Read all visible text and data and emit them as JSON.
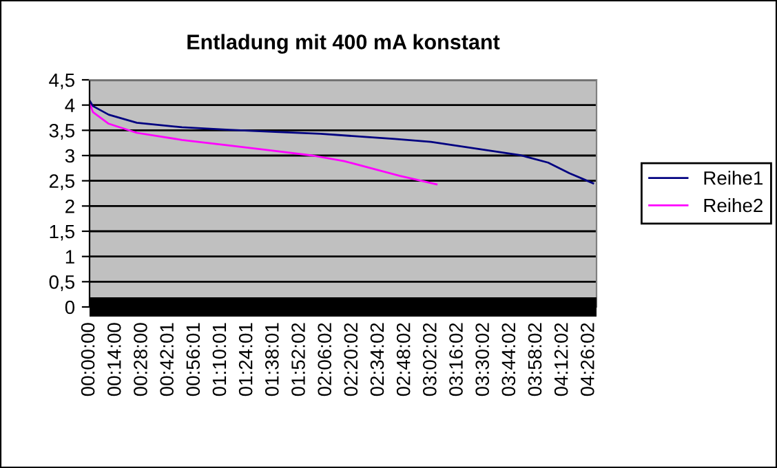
{
  "chart_data": {
    "type": "line",
    "title": "Entladung mit 400 mA konstant",
    "series": [
      {
        "name": "Reihe2",
        "color": "#ff00ff",
        "x": [
          0,
          0.03,
          0.17,
          0.42,
          0.82,
          1.24,
          1.65,
          1.98,
          2.26,
          2.75,
          3.08
        ],
        "values": [
          4.05,
          3.86,
          3.63,
          3.45,
          3.31,
          3.2,
          3.09,
          3.0,
          2.89,
          2.6,
          2.43
        ]
      },
      {
        "name": "Reihe1",
        "color": "#000080",
        "x": [
          0,
          0.03,
          0.17,
          0.42,
          0.82,
          1.24,
          1.65,
          2.05,
          2.71,
          3.03,
          3.45,
          3.82,
          4.07,
          4.26,
          4.47
        ],
        "values": [
          4.09,
          3.98,
          3.81,
          3.65,
          3.56,
          3.51,
          3.47,
          3.43,
          3.33,
          3.27,
          3.13,
          3.01,
          2.86,
          2.65,
          2.45
        ]
      }
    ],
    "xlim": [
      0,
      4.5
    ],
    "xticks": [
      {
        "value": 0,
        "label": "00:00:00"
      },
      {
        "value": 0.2333,
        "label": "00:14:00"
      },
      {
        "value": 0.4667,
        "label": "00:28:00"
      },
      {
        "value": 0.7003,
        "label": "00:42:01"
      },
      {
        "value": 0.9336,
        "label": "00:56:01"
      },
      {
        "value": 1.1669,
        "label": "01:10:01"
      },
      {
        "value": 1.4003,
        "label": "01:24:01"
      },
      {
        "value": 1.6336,
        "label": "01:38:01"
      },
      {
        "value": 1.8672,
        "label": "01:52:02"
      },
      {
        "value": 2.1006,
        "label": "02:06:02"
      },
      {
        "value": 2.3339,
        "label": "02:20:02"
      },
      {
        "value": 2.5672,
        "label": "02:34:02"
      },
      {
        "value": 2.8006,
        "label": "02:48:02"
      },
      {
        "value": 3.0339,
        "label": "03:02:02"
      },
      {
        "value": 3.2672,
        "label": "03:16:02"
      },
      {
        "value": 3.5006,
        "label": "03:30:02"
      },
      {
        "value": 3.7339,
        "label": "03:44:02"
      },
      {
        "value": 3.9672,
        "label": "03:58:02"
      },
      {
        "value": 4.2006,
        "label": "04:12:02"
      },
      {
        "value": 4.4339,
        "label": "04:26:02"
      }
    ],
    "ylim": [
      0,
      4.5
    ],
    "yticks": [
      0,
      {
        "value": 0.5,
        "label": "0,5"
      },
      1,
      {
        "value": 1.5,
        "label": "1,5"
      },
      2,
      {
        "value": 2.5,
        "label": "2,5"
      },
      3,
      {
        "value": 3.5,
        "label": "3,5"
      },
      4,
      {
        "value": 4.5,
        "label": "4,5"
      }
    ],
    "grid": "y",
    "legend": "right",
    "marker": "none",
    "line_style": "solid"
  }
}
